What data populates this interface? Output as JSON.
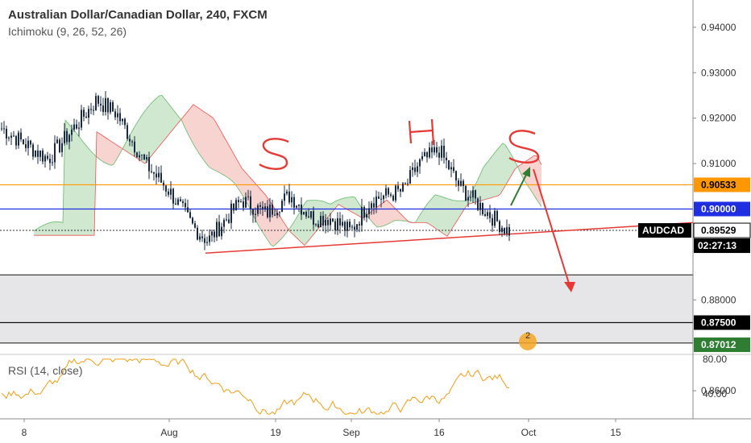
{
  "header": {
    "title": "Australian Dollar/Canadian Dollar, 240, FXCM",
    "indicator": "Ichimoku (9, 26, 52, 26)"
  },
  "rsi": {
    "label": "RSI (14, close)",
    "levels": [
      "80.00",
      "40.00"
    ],
    "color": "#f39c12"
  },
  "annotations": {
    "left_shoulder": "S",
    "head": "H",
    "right_shoulder": "S"
  },
  "event_badge": "2",
  "colors": {
    "candles": "#1a2a44",
    "orange_line": "#ff9800",
    "blue_line": "#1e2ee0",
    "trend_line": "#e53935",
    "arrow_up": "#2e7d32",
    "arrow_down": "#e53935",
    "cloud_bull": "#cfe8cf",
    "cloud_bear": "#f8d4d0",
    "zone": "#e6e6e8",
    "rsi": "#f39c12"
  },
  "chart_data": {
    "type": "candlestick",
    "symbol": "AUDCAD",
    "ylim": [
      0.868,
      0.946
    ],
    "price_ticks": [
      "0.94000",
      "0.93000",
      "0.92000",
      "0.91000",
      "0.88000",
      "0.86000"
    ],
    "x_ticks": [
      "8",
      "Aug",
      "19",
      "Sep",
      "16",
      "Oct",
      "15"
    ],
    "price_labels": [
      {
        "text": "0.90533",
        "value": 0.90533,
        "bg": "#ff9800",
        "fg": "#000000"
      },
      {
        "text": "0.90000",
        "value": 0.9,
        "bg": "#1e2ee0",
        "fg": "#ffffff"
      },
      {
        "text": "0.89529",
        "value": 0.89529,
        "bg": "#ffffff",
        "fg": "#000000"
      },
      {
        "text": "0.87500",
        "value": 0.875,
        "bg": "#000000",
        "fg": "#ffffff"
      },
      {
        "text": "0.87012",
        "value": 0.87012,
        "bg": "#2e7d32",
        "fg": "#ffffff"
      }
    ],
    "symbol_label": {
      "text": "AUDCAD",
      "value": 0.89529
    },
    "countdown": "02:27:13",
    "horizontal_lines": [
      {
        "name": "resistance",
        "value": 0.90533
      },
      {
        "name": "neckline",
        "value": 0.9
      },
      {
        "name": "current",
        "value": 0.89529
      }
    ],
    "zone": {
      "top": 0.8855,
      "bottom": 0.8705,
      "mid": 0.875
    }
  }
}
